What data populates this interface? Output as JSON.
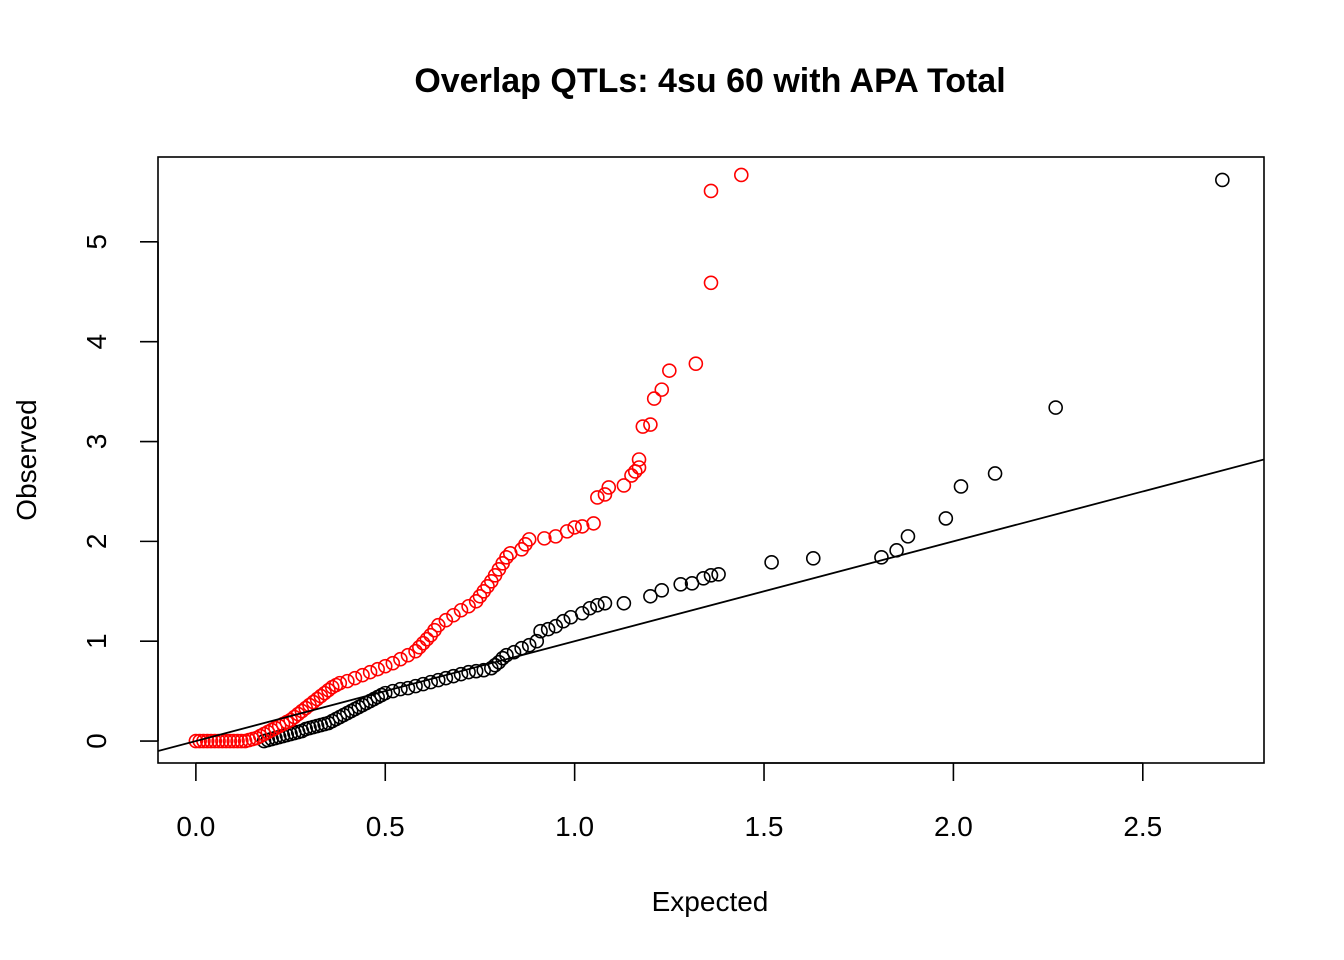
{
  "chart_data": {
    "type": "scatter",
    "title": "Overlap QTLs: 4su 60 with APA Total",
    "xlabel": "Expected",
    "ylabel": "Observed",
    "xlim": [
      -0.1,
      2.82
    ],
    "ylim": [
      -0.22,
      5.85
    ],
    "x_ticks": [
      "0.0",
      "0.5",
      "1.0",
      "1.5",
      "2.0",
      "2.5"
    ],
    "y_ticks": [
      "0",
      "1",
      "2",
      "3",
      "4",
      "5"
    ],
    "grid": false,
    "legend": "none",
    "reference_line": {
      "slope": 1,
      "intercept": 0,
      "color": "#000000"
    },
    "series": [
      {
        "color": "#000000",
        "points": [
          [
            0.18,
            0.0
          ],
          [
            0.19,
            0.01
          ],
          [
            0.2,
            0.02
          ],
          [
            0.21,
            0.03
          ],
          [
            0.22,
            0.04
          ],
          [
            0.23,
            0.05
          ],
          [
            0.24,
            0.06
          ],
          [
            0.25,
            0.07
          ],
          [
            0.26,
            0.08
          ],
          [
            0.27,
            0.09
          ],
          [
            0.28,
            0.1
          ],
          [
            0.29,
            0.12
          ],
          [
            0.3,
            0.13
          ],
          [
            0.31,
            0.14
          ],
          [
            0.32,
            0.15
          ],
          [
            0.33,
            0.16
          ],
          [
            0.34,
            0.17
          ],
          [
            0.35,
            0.18
          ],
          [
            0.36,
            0.2
          ],
          [
            0.37,
            0.22
          ],
          [
            0.38,
            0.24
          ],
          [
            0.39,
            0.26
          ],
          [
            0.4,
            0.28
          ],
          [
            0.41,
            0.3
          ],
          [
            0.42,
            0.32
          ],
          [
            0.43,
            0.34
          ],
          [
            0.44,
            0.36
          ],
          [
            0.45,
            0.38
          ],
          [
            0.46,
            0.4
          ],
          [
            0.47,
            0.42
          ],
          [
            0.48,
            0.44
          ],
          [
            0.49,
            0.46
          ],
          [
            0.5,
            0.48
          ],
          [
            0.52,
            0.5
          ],
          [
            0.54,
            0.52
          ],
          [
            0.56,
            0.53
          ],
          [
            0.58,
            0.55
          ],
          [
            0.6,
            0.57
          ],
          [
            0.62,
            0.59
          ],
          [
            0.64,
            0.61
          ],
          [
            0.66,
            0.63
          ],
          [
            0.68,
            0.65
          ],
          [
            0.7,
            0.67
          ],
          [
            0.72,
            0.69
          ],
          [
            0.74,
            0.7
          ],
          [
            0.76,
            0.71
          ],
          [
            0.78,
            0.73
          ],
          [
            0.79,
            0.76
          ],
          [
            0.8,
            0.79
          ],
          [
            0.81,
            0.83
          ],
          [
            0.82,
            0.86
          ],
          [
            0.84,
            0.89
          ],
          [
            0.86,
            0.93
          ],
          [
            0.88,
            0.96
          ],
          [
            0.9,
            1.0
          ],
          [
            0.91,
            1.1
          ],
          [
            0.93,
            1.12
          ],
          [
            0.95,
            1.15
          ],
          [
            0.97,
            1.2
          ],
          [
            0.99,
            1.24
          ],
          [
            1.02,
            1.28
          ],
          [
            1.04,
            1.33
          ],
          [
            1.06,
            1.36
          ],
          [
            1.08,
            1.38
          ],
          [
            1.13,
            1.38
          ],
          [
            1.2,
            1.45
          ],
          [
            1.23,
            1.51
          ],
          [
            1.28,
            1.57
          ],
          [
            1.31,
            1.58
          ],
          [
            1.34,
            1.63
          ],
          [
            1.36,
            1.66
          ],
          [
            1.38,
            1.67
          ],
          [
            1.52,
            1.79
          ],
          [
            1.63,
            1.83
          ],
          [
            1.81,
            1.84
          ],
          [
            1.85,
            1.91
          ],
          [
            1.88,
            2.05
          ],
          [
            1.98,
            2.23
          ],
          [
            2.02,
            2.55
          ],
          [
            2.11,
            2.68
          ],
          [
            2.27,
            3.34
          ],
          [
            2.71,
            5.62
          ]
        ]
      },
      {
        "color": "#ff0000",
        "points": [
          [
            0.0,
            0.0
          ],
          [
            0.01,
            0.0
          ],
          [
            0.02,
            0.0
          ],
          [
            0.03,
            0.0
          ],
          [
            0.04,
            0.0
          ],
          [
            0.05,
            0.0
          ],
          [
            0.06,
            0.0
          ],
          [
            0.07,
            0.0
          ],
          [
            0.08,
            0.0
          ],
          [
            0.09,
            0.0
          ],
          [
            0.1,
            0.0
          ],
          [
            0.11,
            0.0
          ],
          [
            0.12,
            0.0
          ],
          [
            0.13,
            0.0
          ],
          [
            0.14,
            0.01
          ],
          [
            0.15,
            0.02
          ],
          [
            0.16,
            0.03
          ],
          [
            0.17,
            0.05
          ],
          [
            0.18,
            0.07
          ],
          [
            0.19,
            0.09
          ],
          [
            0.2,
            0.11
          ],
          [
            0.21,
            0.13
          ],
          [
            0.22,
            0.15
          ],
          [
            0.23,
            0.17
          ],
          [
            0.24,
            0.19
          ],
          [
            0.25,
            0.21
          ],
          [
            0.26,
            0.24
          ],
          [
            0.27,
            0.27
          ],
          [
            0.28,
            0.3
          ],
          [
            0.29,
            0.33
          ],
          [
            0.3,
            0.36
          ],
          [
            0.31,
            0.39
          ],
          [
            0.32,
            0.42
          ],
          [
            0.33,
            0.45
          ],
          [
            0.34,
            0.48
          ],
          [
            0.35,
            0.51
          ],
          [
            0.36,
            0.54
          ],
          [
            0.37,
            0.56
          ],
          [
            0.38,
            0.58
          ],
          [
            0.4,
            0.6
          ],
          [
            0.42,
            0.63
          ],
          [
            0.44,
            0.66
          ],
          [
            0.46,
            0.69
          ],
          [
            0.48,
            0.72
          ],
          [
            0.5,
            0.75
          ],
          [
            0.52,
            0.78
          ],
          [
            0.54,
            0.82
          ],
          [
            0.56,
            0.86
          ],
          [
            0.58,
            0.9
          ],
          [
            0.59,
            0.94
          ],
          [
            0.6,
            0.98
          ],
          [
            0.61,
            1.02
          ],
          [
            0.62,
            1.06
          ],
          [
            0.63,
            1.11
          ],
          [
            0.64,
            1.16
          ],
          [
            0.66,
            1.21
          ],
          [
            0.68,
            1.26
          ],
          [
            0.7,
            1.31
          ],
          [
            0.72,
            1.35
          ],
          [
            0.74,
            1.4
          ],
          [
            0.75,
            1.45
          ],
          [
            0.76,
            1.5
          ],
          [
            0.77,
            1.55
          ],
          [
            0.78,
            1.6
          ],
          [
            0.79,
            1.66
          ],
          [
            0.8,
            1.72
          ],
          [
            0.81,
            1.78
          ],
          [
            0.82,
            1.84
          ],
          [
            0.83,
            1.88
          ],
          [
            0.86,
            1.92
          ],
          [
            0.87,
            1.97
          ],
          [
            0.88,
            2.02
          ],
          [
            0.92,
            2.03
          ],
          [
            0.95,
            2.05
          ],
          [
            0.98,
            2.1
          ],
          [
            1.0,
            2.14
          ],
          [
            1.02,
            2.15
          ],
          [
            1.05,
            2.18
          ],
          [
            1.06,
            2.44
          ],
          [
            1.08,
            2.47
          ],
          [
            1.09,
            2.54
          ],
          [
            1.13,
            2.56
          ],
          [
            1.15,
            2.66
          ],
          [
            1.16,
            2.7
          ],
          [
            1.17,
            2.74
          ],
          [
            1.17,
            2.82
          ],
          [
            1.18,
            3.15
          ],
          [
            1.2,
            3.17
          ],
          [
            1.21,
            3.43
          ],
          [
            1.23,
            3.52
          ],
          [
            1.25,
            3.71
          ],
          [
            1.32,
            3.78
          ],
          [
            1.36,
            4.59
          ],
          [
            1.36,
            5.51
          ],
          [
            1.44,
            5.67
          ]
        ]
      }
    ]
  }
}
